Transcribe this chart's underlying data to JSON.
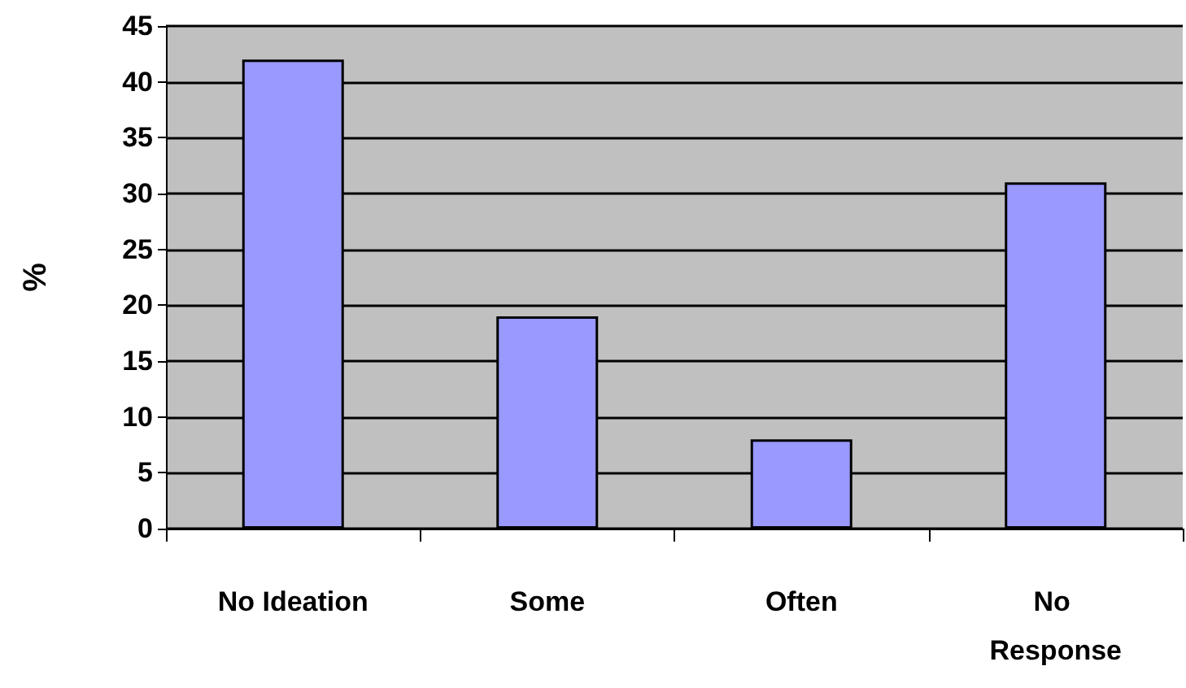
{
  "chart_data": {
    "type": "bar",
    "ylabel": "%",
    "categories": [
      "No Ideation",
      "Some",
      "Often",
      "No Response"
    ],
    "values": [
      42,
      19,
      8,
      31
    ],
    "color": "#9999ff",
    "ylim": [
      0,
      45
    ],
    "yticks": [
      0,
      5,
      10,
      15,
      20,
      25,
      30,
      35,
      40,
      45
    ],
    "grid": "y"
  }
}
